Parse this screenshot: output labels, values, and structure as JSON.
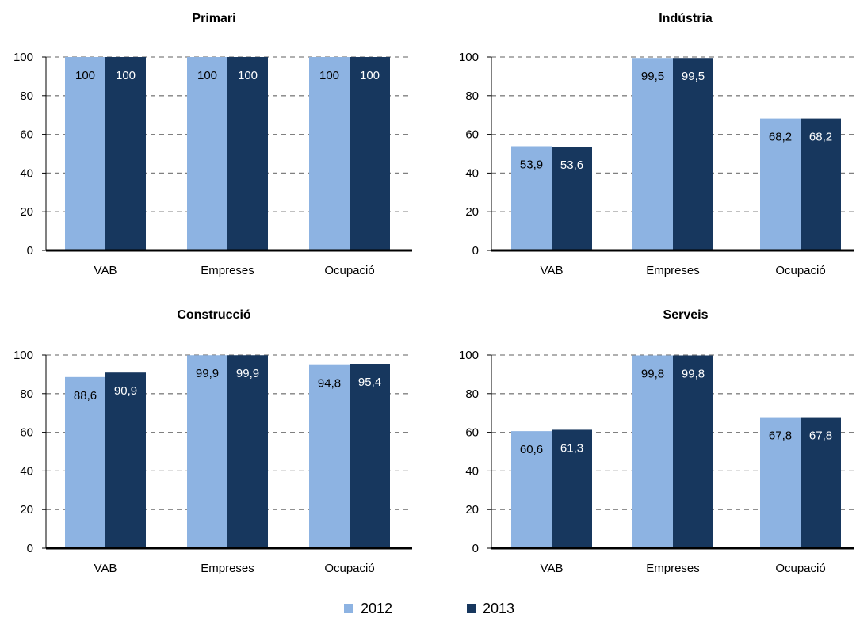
{
  "colors": {
    "s2012": "#8db3e2",
    "s2013": "#17375e",
    "grid": "#808080",
    "axis": "#000000",
    "label_dark": "#000000",
    "label_light": "#ffffff"
  },
  "chart_data": [
    {
      "type": "bar",
      "title": "Primari",
      "categories": [
        "VAB",
        "Empreses",
        "Ocupació"
      ],
      "series": [
        {
          "name": "2012",
          "values": [
            100,
            100,
            100
          ],
          "labels": [
            "100",
            "100",
            "100"
          ]
        },
        {
          "name": "2013",
          "values": [
            100,
            100,
            100
          ],
          "labels": [
            "100",
            "100",
            "100"
          ]
        }
      ],
      "ylim": [
        0,
        100
      ],
      "yticks": [
        0,
        20,
        40,
        60,
        80,
        100
      ],
      "grid": true
    },
    {
      "type": "bar",
      "title": "Indústria",
      "categories": [
        "VAB",
        "Empreses",
        "Ocupació"
      ],
      "series": [
        {
          "name": "2012",
          "values": [
            53.9,
            99.5,
            68.2
          ],
          "labels": [
            "53,9",
            "99,5",
            "68,2"
          ]
        },
        {
          "name": "2013",
          "values": [
            53.6,
            99.5,
            68.2
          ],
          "labels": [
            "53,6",
            "99,5",
            "68,2"
          ]
        }
      ],
      "ylim": [
        0,
        100
      ],
      "yticks": [
        0,
        20,
        40,
        60,
        80,
        100
      ],
      "grid": true
    },
    {
      "type": "bar",
      "title": "Construcció",
      "categories": [
        "VAB",
        "Empreses",
        "Ocupació"
      ],
      "series": [
        {
          "name": "2012",
          "values": [
            88.6,
            99.9,
            94.8
          ],
          "labels": [
            "88,6",
            "99,9",
            "94,8"
          ]
        },
        {
          "name": "2013",
          "values": [
            90.9,
            99.9,
            95.4
          ],
          "labels": [
            "90,9",
            "99,9",
            "95,4"
          ]
        }
      ],
      "ylim": [
        0,
        100
      ],
      "yticks": [
        0,
        20,
        40,
        60,
        80,
        100
      ],
      "grid": true
    },
    {
      "type": "bar",
      "title": "Serveis",
      "categories": [
        "VAB",
        "Empreses",
        "Ocupació"
      ],
      "series": [
        {
          "name": "2012",
          "values": [
            60.6,
            99.8,
            67.8
          ],
          "labels": [
            "60,6",
            "99,8",
            "67,8"
          ]
        },
        {
          "name": "2013",
          "values": [
            61.3,
            99.8,
            67.8
          ],
          "labels": [
            "61,3",
            "99,8",
            "67,8"
          ]
        }
      ],
      "ylim": [
        0,
        100
      ],
      "yticks": [
        0,
        20,
        40,
        60,
        80,
        100
      ],
      "grid": true
    }
  ],
  "legend": {
    "placement": "bottom-center",
    "items": [
      "2012",
      "2013"
    ]
  }
}
